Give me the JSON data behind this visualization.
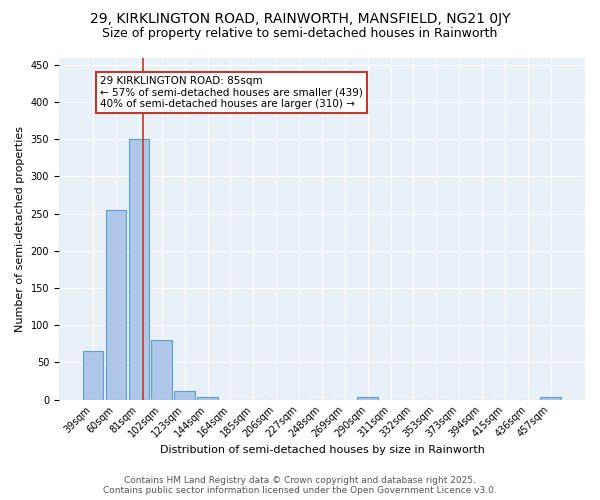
{
  "title_line1": "29, KIRKLINGTON ROAD, RAINWORTH, MANSFIELD, NG21 0JY",
  "title_line2": "Size of property relative to semi-detached houses in Rainworth",
  "xlabel": "Distribution of semi-detached houses by size in Rainworth",
  "ylabel": "Number of semi-detached properties",
  "bar_labels": [
    "39sqm",
    "60sqm",
    "81sqm",
    "102sqm",
    "123sqm",
    "144sqm",
    "164sqm",
    "185sqm",
    "206sqm",
    "227sqm",
    "248sqm",
    "269sqm",
    "290sqm",
    "311sqm",
    "332sqm",
    "353sqm",
    "373sqm",
    "394sqm",
    "415sqm",
    "436sqm",
    "457sqm"
  ],
  "bar_values": [
    65,
    255,
    350,
    80,
    12,
    3,
    0,
    0,
    0,
    0,
    0,
    0,
    4,
    0,
    0,
    0,
    0,
    0,
    0,
    0,
    3
  ],
  "bar_color": "#aec6e8",
  "bar_edge_color": "#5a9fd4",
  "vline_color": "#c0392b",
  "vline_x": 2.2,
  "annotation_text": "29 KIRKLINGTON ROAD: 85sqm\n← 57% of semi-detached houses are smaller (439)\n40% of semi-detached houses are larger (310) →",
  "annotation_box_facecolor": "#ffffff",
  "annotation_box_edgecolor": "#c0392b",
  "ylim": [
    0,
    460
  ],
  "yticks": [
    0,
    50,
    100,
    150,
    200,
    250,
    300,
    350,
    400,
    450
  ],
  "background_color": "#e8f0f8",
  "footer_line1": "Contains HM Land Registry data © Crown copyright and database right 2025.",
  "footer_line2": "Contains public sector information licensed under the Open Government Licence v3.0.",
  "title_fontsize": 10,
  "subtitle_fontsize": 9,
  "axis_label_fontsize": 8,
  "tick_fontsize": 7,
  "annotation_fontsize": 7.5,
  "footer_fontsize": 6.5
}
